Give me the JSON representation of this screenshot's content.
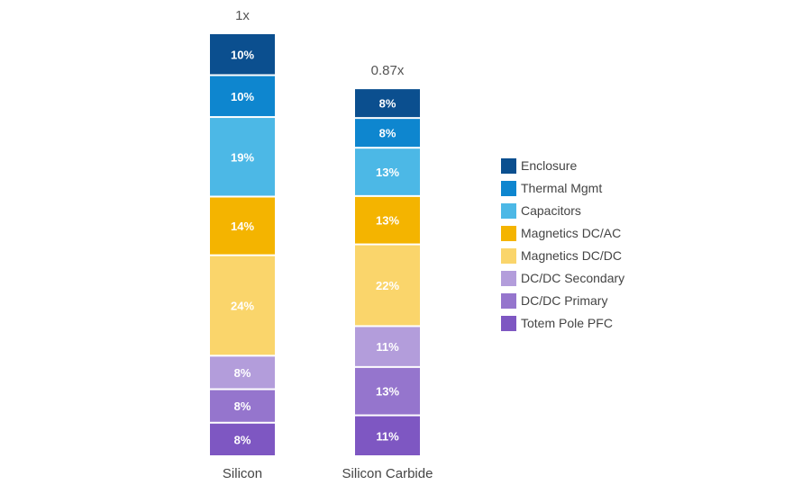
{
  "chart_data": {
    "type": "bar",
    "stacked": true,
    "normalized": true,
    "categories": [
      "Silicon",
      "Silicon Carbide"
    ],
    "totals": [
      "1x",
      "0.87x"
    ],
    "total_values": [
      1.0,
      0.87
    ],
    "series": [
      {
        "name": "Totem Pole PFC",
        "color": "#7E57C2",
        "values": [
          8,
          11
        ],
        "labels": [
          "8%",
          "11%"
        ]
      },
      {
        "name": "DC/DC Primary",
        "color": "#9575CD",
        "values": [
          8,
          13
        ],
        "labels": [
          "8%",
          "13%"
        ]
      },
      {
        "name": "DC/DC Secondary",
        "color": "#B39DDB",
        "values": [
          8,
          11
        ],
        "labels": [
          "8%",
          "11%"
        ]
      },
      {
        "name": "Magnetics DC/DC",
        "color": "#FAD56B",
        "values": [
          24,
          22
        ],
        "labels": [
          "24%",
          "22%"
        ]
      },
      {
        "name": "Magnetics DC/AC",
        "color": "#F4B400",
        "values": [
          14,
          13
        ],
        "labels": [
          "14%",
          "13%"
        ]
      },
      {
        "name": "Capacitors",
        "color": "#4CB8E6",
        "values": [
          19,
          13
        ],
        "labels": [
          "19%",
          "13%"
        ]
      },
      {
        "name": "Thermal Mgmt",
        "color": "#0E86CF",
        "values": [
          10,
          8
        ],
        "labels": [
          "10%",
          "8%"
        ]
      },
      {
        "name": "Enclosure",
        "color": "#0B4F8F",
        "values": [
          10,
          8
        ],
        "labels": [
          "10%",
          "8%"
        ]
      }
    ],
    "legend_order": [
      "Enclosure",
      "Thermal Mgmt",
      "Capacitors",
      "Magnetics DC/AC",
      "Magnetics DC/DC",
      "DC/DC Secondary",
      "DC/DC Primary",
      "Totem Pole PFC"
    ],
    "legend_position": "right",
    "grid": false,
    "xlabel": "",
    "ylabel": ""
  }
}
